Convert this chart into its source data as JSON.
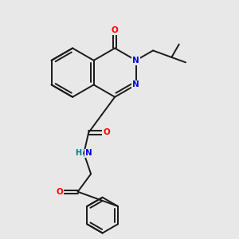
{
  "bg_color": "#e8e8e8",
  "bond_color": "#1a1a1a",
  "N_color": "#0000ee",
  "O_color": "#ff0000",
  "H_color": "#008080",
  "lw": 1.4,
  "dbo": 0.035,
  "fig_w": 3.0,
  "fig_h": 3.0,
  "dpi": 100,
  "xlim": [
    -0.5,
    4.5
  ],
  "ylim": [
    -3.5,
    1.5
  ]
}
